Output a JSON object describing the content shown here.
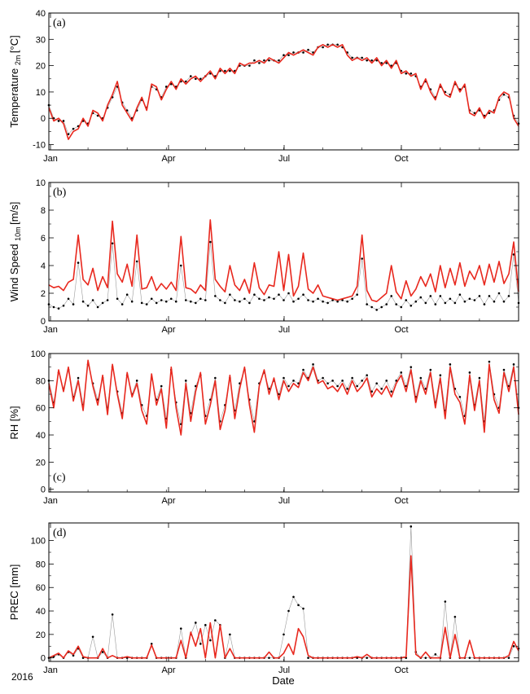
{
  "figure": {
    "xlabel": "Date",
    "year": "2016"
  },
  "months": [
    "Jan",
    "Apr",
    "Jul",
    "Oct"
  ],
  "colors": {
    "model": "#e8281e",
    "obs": "#000000",
    "obs_line": "#9a9a9a"
  },
  "chart_data": [
    {
      "type": "line",
      "panel": "(a)",
      "ylabel_main": "Temperature",
      "ylabel_sub": "2m",
      "ylabel_unit": "[°C]",
      "ylim": [
        -12,
        40
      ],
      "yticks": [
        -10,
        0,
        10,
        20,
        30,
        40
      ],
      "series": [
        {
          "values": [
            4,
            -1,
            0,
            -2,
            -8,
            -5,
            -4,
            0,
            -3,
            3,
            2,
            -1,
            5,
            9,
            14,
            5,
            2,
            -1,
            4,
            8,
            3,
            13,
            12,
            7,
            11,
            14,
            11,
            15,
            13,
            15,
            16,
            14,
            16,
            18,
            15,
            19,
            17,
            19,
            17,
            21,
            20,
            21,
            21,
            22,
            21,
            23,
            22,
            21,
            23,
            25,
            24,
            25,
            26,
            25,
            24,
            27,
            28,
            27,
            28,
            27,
            28,
            24,
            22,
            23,
            22,
            23,
            21,
            23,
            20,
            22,
            19,
            22,
            17,
            18,
            16,
            17,
            11,
            15,
            10,
            7,
            13,
            9,
            8,
            14,
            10,
            13,
            2,
            1,
            4,
            0,
            3,
            2,
            8,
            10,
            9,
            0,
            -3
          ]
        },
        {
          "values": [
            5,
            0,
            -1,
            -1,
            -6,
            -4,
            -3,
            -1,
            -2,
            2,
            1,
            0,
            4,
            8,
            12,
            6,
            3,
            0,
            3,
            7,
            4,
            12,
            11,
            8,
            12,
            13,
            12,
            14,
            14,
            16,
            15,
            15,
            16,
            17,
            16,
            18,
            18,
            18,
            18,
            20,
            20,
            20,
            22,
            21,
            22,
            22,
            22,
            22,
            24,
            24,
            25,
            25,
            25,
            26,
            25,
            27,
            27,
            28,
            28,
            28,
            27,
            25,
            23,
            23,
            23,
            22,
            22,
            22,
            21,
            21,
            20,
            21,
            18,
            17,
            17,
            16,
            12,
            14,
            11,
            8,
            12,
            10,
            9,
            13,
            11,
            12,
            3,
            2,
            3,
            1,
            2,
            3,
            7,
            9,
            8,
            1,
            -2
          ]
        }
      ]
    },
    {
      "type": "line",
      "panel": "(b)",
      "ylabel_main": "Wind Speed",
      "ylabel_sub": "10m",
      "ylabel_unit": "[m/s]",
      "ylim": [
        0,
        10
      ],
      "yticks": [
        0,
        2,
        4,
        6,
        8,
        10
      ],
      "series": [
        {
          "values": [
            2.6,
            2.4,
            2.5,
            2.2,
            2.8,
            3.0,
            6.2,
            3.0,
            2.6,
            3.8,
            2.2,
            3.2,
            2.4,
            7.2,
            3.4,
            2.8,
            4.1,
            2.5,
            6.2,
            2.3,
            2.4,
            3.2,
            2.2,
            2.7,
            2.3,
            2.8,
            2.2,
            6.1,
            2.4,
            2.3,
            2.0,
            2.6,
            2.2,
            7.3,
            3.0,
            2.5,
            2.1,
            4.0,
            2.6,
            2.2,
            3.0,
            2.0,
            4.2,
            2.4,
            1.9,
            2.6,
            2.5,
            5.0,
            2.2,
            4.8,
            1.8,
            2.5,
            4.9,
            2.3,
            2.0,
            2.6,
            1.8,
            1.7,
            1.6,
            1.5,
            1.6,
            1.7,
            1.8,
            2.5,
            6.2,
            2.2,
            1.5,
            1.4,
            1.7,
            2.0,
            4.0,
            2.1,
            1.6,
            2.9,
            1.8,
            2.3,
            3.2,
            2.5,
            3.4,
            2.1,
            4.0,
            2.4,
            3.8,
            2.6,
            4.2,
            2.5,
            3.6,
            3.0,
            4.0,
            2.6,
            4.1,
            2.8,
            4.3,
            2.7,
            3.4,
            5.7,
            2.1
          ]
        },
        {
          "values": [
            1.2,
            1.0,
            0.9,
            1.1,
            1.6,
            1.2,
            4.2,
            1.4,
            1.1,
            1.5,
            1.0,
            1.3,
            1.5,
            5.6,
            1.6,
            1.2,
            1.9,
            1.4,
            4.3,
            1.3,
            1.2,
            1.6,
            1.3,
            1.5,
            1.4,
            1.6,
            1.4,
            4.0,
            1.5,
            1.4,
            1.3,
            1.6,
            1.5,
            5.7,
            1.8,
            1.5,
            1.3,
            1.9,
            1.5,
            1.4,
            1.6,
            1.3,
            1.9,
            1.6,
            1.5,
            1.7,
            1.6,
            1.9,
            1.5,
            2.0,
            1.4,
            1.6,
            1.9,
            1.5,
            1.4,
            1.6,
            1.4,
            1.3,
            1.5,
            1.4,
            1.5,
            1.4,
            1.6,
            1.9,
            4.5,
            1.2,
            1.0,
            0.8,
            1.0,
            1.2,
            1.8,
            1.2,
            1.0,
            1.5,
            1.1,
            1.4,
            1.7,
            1.3,
            1.8,
            1.2,
            1.8,
            1.3,
            1.6,
            1.3,
            1.9,
            1.4,
            1.6,
            1.5,
            1.8,
            1.2,
            1.8,
            1.4,
            2.0,
            1.4,
            1.8,
            4.8,
            1.3
          ]
        }
      ]
    },
    {
      "type": "line",
      "panel": "(c)",
      "ylabel_main": "RH",
      "ylabel_sub": "",
      "ylabel_unit": "[%]",
      "ylim": [
        -2,
        100
      ],
      "yticks": [
        0,
        20,
        40,
        60,
        80,
        100
      ],
      "series": [
        {
          "values": [
            78,
            60,
            88,
            72,
            90,
            65,
            80,
            58,
            95,
            76,
            62,
            84,
            55,
            92,
            70,
            52,
            86,
            68,
            78,
            58,
            48,
            85,
            62,
            74,
            45,
            90,
            60,
            40,
            78,
            50,
            72,
            86,
            48,
            62,
            80,
            44,
            58,
            84,
            52,
            74,
            90,
            62,
            42,
            76,
            88,
            70,
            82,
            66,
            80,
            72,
            78,
            75,
            86,
            80,
            90,
            78,
            80,
            74,
            76,
            72,
            78,
            70,
            80,
            72,
            76,
            82,
            68,
            74,
            70,
            76,
            68,
            78,
            84,
            72,
            88,
            64,
            80,
            70,
            86,
            60,
            82,
            52,
            90,
            70,
            64,
            48,
            84,
            58,
            80,
            42,
            92,
            66,
            56,
            86,
            72,
            90,
            55
          ]
        },
        {
          "values": [
            80,
            64,
            86,
            74,
            88,
            68,
            82,
            62,
            92,
            78,
            66,
            82,
            60,
            90,
            72,
            56,
            84,
            70,
            80,
            62,
            54,
            82,
            66,
            76,
            52,
            88,
            64,
            48,
            80,
            56,
            76,
            84,
            54,
            66,
            82,
            50,
            62,
            82,
            58,
            78,
            88,
            66,
            50,
            78,
            86,
            74,
            80,
            70,
            82,
            76,
            80,
            78,
            88,
            82,
            92,
            80,
            82,
            78,
            80,
            76,
            80,
            74,
            82,
            76,
            80,
            84,
            72,
            78,
            74,
            80,
            72,
            80,
            86,
            76,
            90,
            68,
            82,
            74,
            88,
            64,
            84,
            58,
            92,
            74,
            68,
            54,
            86,
            62,
            82,
            50,
            94,
            70,
            60,
            88,
            76,
            92,
            60
          ]
        }
      ]
    },
    {
      "type": "line",
      "panel": "(d)",
      "ylabel_main": "PREC",
      "ylabel_sub": "",
      "ylabel_unit": "[mm]",
      "ylim": [
        -3,
        115
      ],
      "yticks": [
        0,
        20,
        40,
        60,
        80,
        100
      ],
      "series": [
        {
          "values": [
            0,
            2,
            4,
            0,
            6,
            3,
            10,
            1,
            0,
            0,
            0,
            8,
            0,
            2,
            0,
            0,
            1,
            0,
            0,
            0,
            0,
            11,
            0,
            0,
            0,
            0,
            0,
            15,
            0,
            22,
            10,
            25,
            0,
            30,
            0,
            28,
            0,
            8,
            0,
            0,
            0,
            0,
            0,
            0,
            0,
            5,
            0,
            0,
            4,
            12,
            3,
            25,
            18,
            2,
            0,
            0,
            0,
            0,
            0,
            0,
            0,
            0,
            0,
            1,
            0,
            3,
            0,
            0,
            0,
            0,
            0,
            0,
            0,
            1,
            87,
            3,
            0,
            5,
            0,
            0,
            0,
            26,
            0,
            20,
            0,
            0,
            15,
            0,
            0,
            0,
            0,
            0,
            0,
            0,
            2,
            14,
            6
          ]
        },
        {
          "values": [
            0,
            1,
            3,
            0,
            5,
            2,
            8,
            0,
            0,
            18,
            0,
            5,
            0,
            37,
            0,
            0,
            0,
            0,
            0,
            0,
            0,
            12,
            0,
            0,
            0,
            0,
            0,
            25,
            0,
            20,
            30,
            12,
            28,
            15,
            32,
            28,
            0,
            20,
            0,
            0,
            0,
            0,
            0,
            0,
            0,
            0,
            0,
            0,
            20,
            40,
            52,
            45,
            42,
            0,
            0,
            0,
            0,
            0,
            0,
            0,
            0,
            0,
            0,
            0,
            0,
            0,
            0,
            0,
            0,
            0,
            0,
            0,
            0,
            0,
            112,
            5,
            0,
            0,
            0,
            3,
            0,
            48,
            0,
            35,
            0,
            0,
            0,
            0,
            0,
            0,
            0,
            0,
            0,
            0,
            0,
            10,
            8
          ]
        }
      ]
    }
  ]
}
